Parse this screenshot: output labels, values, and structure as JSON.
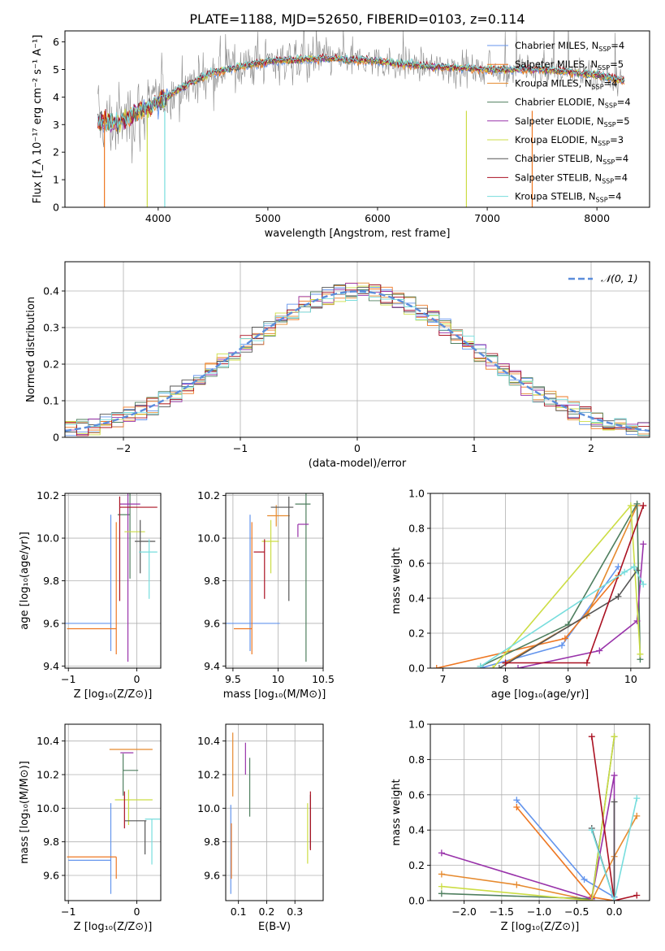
{
  "figure_title": "PLATE=1188, MJD=52650, FIBERID=0103, z=0.114",
  "models": [
    {
      "name": "Chabrier MILES",
      "nssp": "4",
      "color": "#6495ed"
    },
    {
      "name": "Salpeter MILES",
      "nssp": "5",
      "color": "#ee7722"
    },
    {
      "name": "Kroupa MILES",
      "nssp": "4",
      "color": "#e68a2e"
    },
    {
      "name": "Chabrier ELODIE",
      "nssp": "4",
      "color": "#4f7f5f"
    },
    {
      "name": "Salpeter ELODIE",
      "nssp": "5",
      "color": "#9933aa"
    },
    {
      "name": "Kroupa ELODIE",
      "nssp": "3",
      "color": "#ccdd44"
    },
    {
      "name": "Chabrier STELIB",
      "nssp": "4",
      "color": "#555555"
    },
    {
      "name": "Salpeter STELIB",
      "nssp": "4",
      "color": "#aa1122"
    },
    {
      "name": "Kroupa STELIB",
      "nssp": "4",
      "color": "#77dddd"
    }
  ],
  "chart_data": [
    {
      "id": "spectrum",
      "type": "line",
      "xlabel": "wavelength [Angstrom, rest frame]",
      "ylabel": "Flux [f_λ 10⁻¹⁷ erg cm⁻² s⁻¹ A⁻¹]",
      "xlim": [
        3150,
        8480
      ],
      "ylim": [
        0,
        6.4
      ],
      "xticks": [
        4000,
        5000,
        6000,
        7000,
        8000
      ],
      "yticks": [
        0,
        1,
        2,
        3,
        4,
        5,
        6
      ],
      "grid": false,
      "legend": "right",
      "data_color": "#888888",
      "continuum": {
        "x": [
          3450,
          3600,
          3750,
          3900,
          4000,
          4200,
          4500,
          5000,
          5500,
          6000,
          6500,
          7000,
          7500,
          8000,
          8250
        ],
        "y": [
          3.2,
          3.0,
          3.3,
          3.6,
          3.8,
          4.3,
          4.9,
          5.3,
          5.4,
          5.3,
          5.1,
          5.0,
          5.0,
          4.8,
          4.6
        ]
      }
    },
    {
      "id": "residuals",
      "type": "line",
      "xlabel": "(data-model)/error",
      "ylabel": "Normed distribution",
      "xlim": [
        -2.5,
        2.5
      ],
      "ylim": [
        0,
        0.48
      ],
      "xticks": [
        -2,
        -1,
        0,
        1,
        2
      ],
      "yticks": [
        0.0,
        0.1,
        0.2,
        0.3,
        0.4
      ],
      "grid": true,
      "legend": "top-right",
      "reference_label": "𝒩(0, 1)",
      "reference_color": "#5b8ddb"
    },
    {
      "id": "age-vs-Z",
      "type": "scatter",
      "xlabel": "Z [log₁₀(Z/Z⊙)]",
      "ylabel": "age  [log₁₀(age/yr)]",
      "xlim": [
        -1.05,
        0.35
      ],
      "ylim": [
        9.39,
        10.21
      ],
      "xticks": [
        -1,
        0
      ],
      "yticks": [
        9.4,
        9.6,
        9.8,
        10.0,
        10.2
      ],
      "grid": true,
      "points": [
        {
          "x": -0.38,
          "y": 9.6,
          "xerr": [
            0.98,
            0.0
          ],
          "yerr": [
            0.13,
            0.51
          ]
        },
        {
          "x": -0.3,
          "y": 9.575,
          "xerr": [
            0.72,
            0.0
          ],
          "yerr": [
            0.12,
            0.5
          ]
        },
        {
          "x": 0.0,
          "y": 9.6,
          "xerr": [
            0.0,
            0.0
          ],
          "yerr": [
            0.0,
            0.0
          ]
        },
        {
          "x": -0.1,
          "y": 10.11,
          "xerr": [
            0.18,
            0.0
          ],
          "yerr": [
            0.3,
            0.1
          ]
        },
        {
          "x": -0.13,
          "y": 10.16,
          "xerr": [
            0.12,
            0.18
          ],
          "yerr": [
            0.74,
            0.05
          ]
        },
        {
          "x": 0.12,
          "y": 10.03,
          "xerr": [
            0.3,
            0.0
          ],
          "yerr": [
            0.0,
            0.0
          ]
        },
        {
          "x": 0.05,
          "y": 9.985,
          "xerr": [
            0.08,
            0.22
          ],
          "yerr": [
            0.15,
            0.1
          ]
        },
        {
          "x": -0.25,
          "y": 10.145,
          "xerr": [
            0.0,
            0.55
          ],
          "yerr": [
            0.44,
            0.05
          ]
        },
        {
          "x": 0.18,
          "y": 9.935,
          "xerr": [
            0.15,
            0.12
          ],
          "yerr": [
            0.22,
            0.06
          ]
        }
      ]
    },
    {
      "id": "age-vs-mass",
      "type": "scatter",
      "xlabel": "mass [log₁₀(M/M⊙)]",
      "ylabel": "",
      "xlim": [
        9.42,
        10.5
      ],
      "ylim": [
        9.39,
        10.21
      ],
      "xticks": [
        9.5,
        10.0,
        10.5
      ],
      "yticks": [
        9.4,
        9.6,
        9.8,
        10.0,
        10.2
      ],
      "grid": true,
      "points": [
        {
          "x": 9.69,
          "y": 9.6,
          "xerr": [
            0.27,
            0.33
          ],
          "yerr": [
            0.13,
            0.51
          ]
        },
        {
          "x": 9.71,
          "y": 9.575,
          "xerr": [
            0.2,
            0.0
          ],
          "yerr": [
            0.12,
            0.5
          ]
        },
        {
          "x": 9.98,
          "y": 10.105,
          "xerr": [
            0.1,
            0.15
          ],
          "yerr": [
            0.05,
            0.05
          ]
        },
        {
          "x": 10.31,
          "y": 10.16,
          "xerr": [
            0.12,
            0.05
          ],
          "yerr": [
            0.74,
            0.05
          ]
        },
        {
          "x": 10.22,
          "y": 10.065,
          "xerr": [
            0.0,
            0.12
          ],
          "yerr": [
            0.06,
            0.0
          ]
        },
        {
          "x": 9.92,
          "y": 9.985,
          "xerr": [
            0.1,
            0.09
          ],
          "yerr": [
            0.15,
            0.1
          ]
        },
        {
          "x": 10.12,
          "y": 10.145,
          "xerr": [
            0.2,
            0.05
          ],
          "yerr": [
            0.44,
            0.05
          ]
        },
        {
          "x": 9.85,
          "y": 9.935,
          "xerr": [
            0.12,
            0.0
          ],
          "yerr": [
            0.22,
            0.06
          ]
        }
      ]
    },
    {
      "id": "weight-vs-age",
      "type": "line",
      "xlabel": "age  [log₁₀(age/yr)]",
      "ylabel": "mass weight",
      "xlim": [
        6.8,
        10.3
      ],
      "ylim": [
        0,
        1.0
      ],
      "xticks": [
        7,
        8,
        9,
        10
      ],
      "yticks": [
        0.0,
        0.2,
        0.4,
        0.6,
        0.8,
        1.0
      ],
      "grid": true
    },
    {
      "id": "mass-vs-Z",
      "type": "scatter",
      "xlabel": "Z [log₁₀(Z/Z⊙)]",
      "ylabel": "mass [log₁₀(M/M⊙)]",
      "xlim": [
        -1.05,
        0.35
      ],
      "ylim": [
        9.45,
        10.5
      ],
      "xticks": [
        -1,
        0
      ],
      "yticks": [
        9.6,
        9.8,
        10.0,
        10.2,
        10.4
      ],
      "grid": true,
      "points": [
        {
          "x": -0.38,
          "y": 9.69,
          "xerr": [
            0.62,
            0.0
          ],
          "yerr": [
            0.2,
            0.34
          ]
        },
        {
          "x": -0.3,
          "y": 9.71,
          "xerr": [
            0.72,
            0.0
          ],
          "yerr": [
            0.13,
            0.0
          ]
        },
        {
          "x": -0.02,
          "y": 10.35,
          "xerr": [
            0.38,
            0.25
          ],
          "yerr": [
            0.0,
            0.0
          ]
        },
        {
          "x": -0.2,
          "y": 10.225,
          "xerr": [
            0.0,
            0.22
          ],
          "yerr": [
            0.15,
            0.1
          ]
        },
        {
          "x": -0.1,
          "y": 10.33,
          "xerr": [
            0.14,
            0.05
          ],
          "yerr": [
            0.0,
            0.0
          ]
        },
        {
          "x": -0.12,
          "y": 10.05,
          "xerr": [
            0.2,
            0.35
          ],
          "yerr": [
            0.15,
            0.06
          ]
        },
        {
          "x": 0.12,
          "y": 9.925,
          "xerr": [
            0.3,
            0.02
          ],
          "yerr": [
            0.2,
            0.0
          ]
        },
        {
          "x": -0.18,
          "y": 10.02,
          "xerr": [
            0.0,
            0.0
          ],
          "yerr": [
            0.14,
            0.08
          ]
        },
        {
          "x": 0.22,
          "y": 9.935,
          "xerr": [
            0.1,
            0.12
          ],
          "yerr": [
            0.27,
            0.0
          ]
        }
      ]
    },
    {
      "id": "mass-vs-ebv",
      "type": "scatter",
      "xlabel": "E(B-V)",
      "ylabel": "",
      "xlim": [
        0.055,
        0.4
      ],
      "ylim": [
        9.45,
        10.5
      ],
      "xticks": [
        0.1,
        0.2,
        0.3
      ],
      "yticks": [
        9.6,
        9.8,
        10.0,
        10.2,
        10.4
      ],
      "grid": true,
      "points": [
        {
          "x": 0.073,
          "y": 9.69,
          "xerr": [
            0,
            0
          ],
          "yerr": [
            0.2,
            0.33
          ]
        },
        {
          "x": 0.075,
          "y": 9.71,
          "xerr": [
            0,
            0
          ],
          "yerr": [
            0.13,
            0.2
          ]
        },
        {
          "x": 0.08,
          "y": 10.25,
          "xerr": [
            0,
            0
          ],
          "yerr": [
            0.18,
            0.2
          ]
        },
        {
          "x": 0.14,
          "y": 10.1,
          "xerr": [
            0,
            0
          ],
          "yerr": [
            0.15,
            0.2
          ]
        },
        {
          "x": 0.125,
          "y": 10.3,
          "xerr": [
            0,
            0
          ],
          "yerr": [
            0.1,
            0.09
          ]
        },
        {
          "x": 0.345,
          "y": 9.85,
          "xerr": [
            0,
            0
          ],
          "yerr": [
            0.18,
            0.18
          ]
        },
        {
          "x": 0.355,
          "y": 9.93,
          "xerr": [
            0,
            0
          ],
          "yerr": [
            0.17,
            0.15
          ]
        },
        {
          "x": 0.355,
          "y": 9.95,
          "xerr": [
            0,
            0
          ],
          "yerr": [
            0.2,
            0.15
          ]
        }
      ]
    },
    {
      "id": "weight-vs-Z",
      "type": "line",
      "xlabel": "Z [log₁₀(Z/Z⊙)]",
      "ylabel": "mass weight",
      "xlim": [
        -2.45,
        0.47
      ],
      "ylim": [
        0,
        1.0
      ],
      "xticks": [
        -2.0,
        -1.5,
        -1.0,
        -0.5,
        0.0
      ],
      "yticks": [
        0.0,
        0.2,
        0.4,
        0.6,
        0.8,
        1.0
      ],
      "grid": true
    }
  ]
}
